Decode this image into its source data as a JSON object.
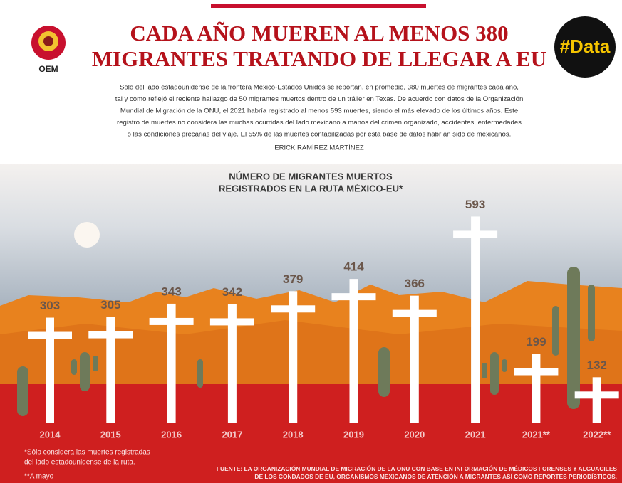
{
  "header": {
    "logo": "OEM",
    "badge": "#Data",
    "title_lines": [
      "CADA AÑO MUEREN AL MENOS 380",
      "MIGRANTES TRATANDO DE LLEGAR A EU"
    ],
    "paragraph_lines": [
      "Sólo del lado estadounidense de la frontera México-Estados Unidos se reportan, en promedio, 380 muertes de migrantes cada año,",
      "tal y como reflejó el reciente hallazgo de 50 migrantes muertos dentro de un tráiler en Texas. De acuerdo con datos de la Organización",
      "Mundial de Migración de la ONU, el 2021 habría registrado al menos 593 muertes, siendo el más elevado de los últimos años. Este",
      "registro de muertes no considera las muchas ocurridas del lado mexicano a manos del crimen organizado, accidentes, enfermedades",
      "o las condiciones precarias del viaje. El 55% de las muertes contabilizadas por esta base de datos habrían sido de mexicanos."
    ],
    "author": "ERICK RAMÍREZ MARTÍNEZ"
  },
  "chart_data": {
    "type": "bar",
    "title_lines": [
      "NÚMERO DE MIGRANTES MUERTOS",
      "REGISTRADOS EN LA RUTA MÉXICO-EU*"
    ],
    "categories": [
      "2014",
      "2015",
      "2016",
      "2017",
      "2018",
      "2019",
      "2020",
      "2021",
      "2021**",
      "2022**"
    ],
    "values": [
      303,
      305,
      343,
      342,
      379,
      414,
      366,
      593,
      199,
      132
    ],
    "color": "#ffffff"
  },
  "footnotes": [
    "*Sólo considera las muertes registradas",
    "del lado estadounidense de la ruta.",
    "**A mayo"
  ],
  "source_lines": [
    "FUENTE: LA ORGANIZACIÓN MUNDIAL DE MIGRACIÓN DE LA ONU CON BASE EN INFORMACIÓN DE MÉDICOS FORENSES Y ALGUACILES",
    "DE LOS CONDADOS DE EU, ORGANISMOS MEXICANOS DE ATENCIÓN A MIGRANTES ASÍ COMO REPORTES PERIODÍSTICOS."
  ]
}
